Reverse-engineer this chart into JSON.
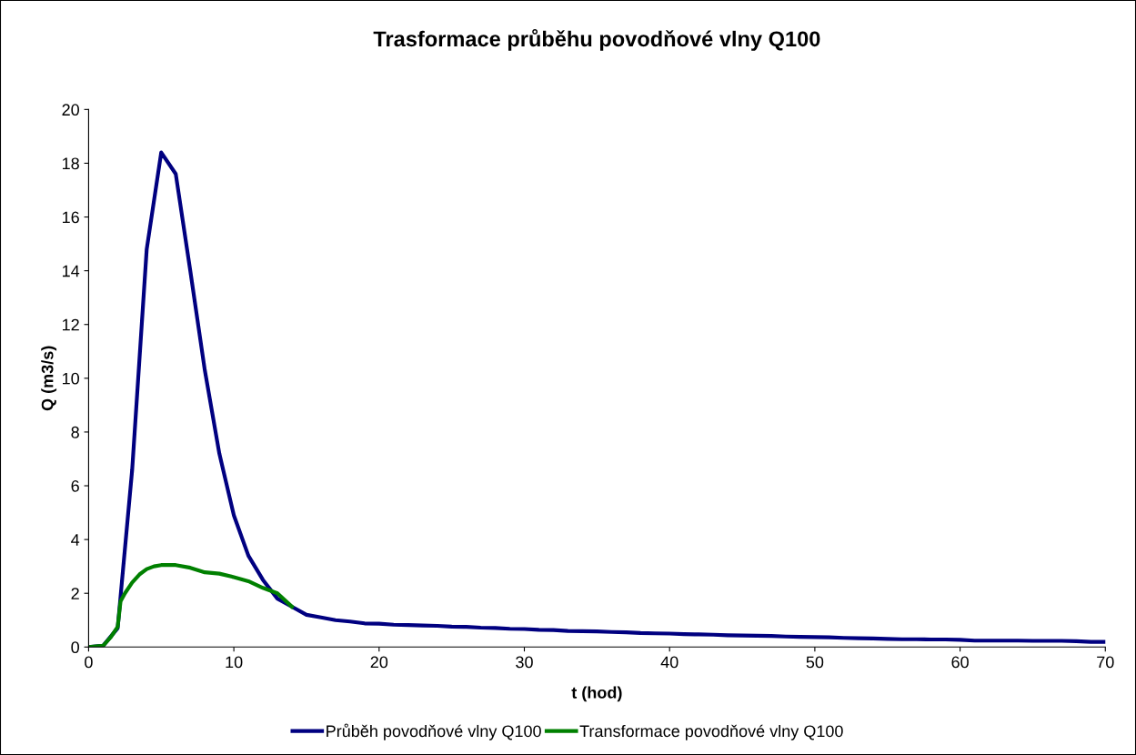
{
  "chart_data": {
    "type": "line",
    "title": "Trasformace průběhu povodňové vlny Q100",
    "xlabel": "t (hod)",
    "ylabel": "Q (m3/s)",
    "xlim": [
      0,
      70
    ],
    "xticks": [
      0,
      10,
      20,
      30,
      40,
      50,
      60,
      70
    ],
    "ylim": [
      0,
      20
    ],
    "yticks": [
      0,
      2,
      4,
      6,
      8,
      10,
      12,
      14,
      16,
      18,
      20
    ],
    "grid": false,
    "legend": "bottom",
    "marker": "none",
    "line_style": "solid",
    "series": [
      {
        "name": "Průběh povodňové vlny Q100",
        "color": "#000080",
        "x": [
          0,
          1,
          2,
          3,
          4,
          5,
          6,
          7,
          8,
          9,
          10,
          11,
          12,
          13,
          14,
          15,
          16,
          17,
          18,
          19,
          20,
          21,
          22,
          23,
          24,
          25,
          26,
          27,
          28,
          29,
          30,
          31,
          32,
          33,
          34,
          35,
          36,
          37,
          38,
          39,
          40,
          41,
          42,
          43,
          44,
          45,
          46,
          47,
          48,
          49,
          50,
          51,
          52,
          53,
          54,
          55,
          56,
          57,
          58,
          59,
          60,
          61,
          62,
          63,
          64,
          65,
          66,
          67,
          68,
          69,
          70
        ],
        "values": [
          0,
          0.05,
          0.7,
          6.6,
          14.8,
          18.4,
          17.6,
          14.0,
          10.3,
          7.2,
          4.9,
          3.4,
          2.5,
          1.8,
          1.5,
          1.2,
          1.1,
          1.0,
          0.95,
          0.88,
          0.87,
          0.83,
          0.82,
          0.8,
          0.79,
          0.76,
          0.75,
          0.72,
          0.71,
          0.68,
          0.67,
          0.64,
          0.63,
          0.6,
          0.59,
          0.58,
          0.56,
          0.55,
          0.52,
          0.51,
          0.5,
          0.48,
          0.47,
          0.46,
          0.44,
          0.43,
          0.42,
          0.41,
          0.39,
          0.38,
          0.37,
          0.36,
          0.34,
          0.33,
          0.32,
          0.3,
          0.29,
          0.29,
          0.28,
          0.28,
          0.27,
          0.24,
          0.24,
          0.24,
          0.24,
          0.23,
          0.23,
          0.23,
          0.22,
          0.19,
          0.19
        ]
      },
      {
        "name": "Transformace povodňové vlny Q100",
        "color": "#008000",
        "x": [
          0,
          1,
          1.5,
          2,
          2.2,
          2.5,
          3,
          3.5,
          4,
          4.5,
          5,
          6,
          7,
          8,
          9,
          10,
          11,
          12,
          13,
          14
        ],
        "values": [
          0,
          0.05,
          0.35,
          0.75,
          1.7,
          2.0,
          2.4,
          2.7,
          2.9,
          3.0,
          3.05,
          3.05,
          2.95,
          2.78,
          2.73,
          2.6,
          2.45,
          2.2,
          2.0,
          1.5
        ]
      }
    ]
  }
}
